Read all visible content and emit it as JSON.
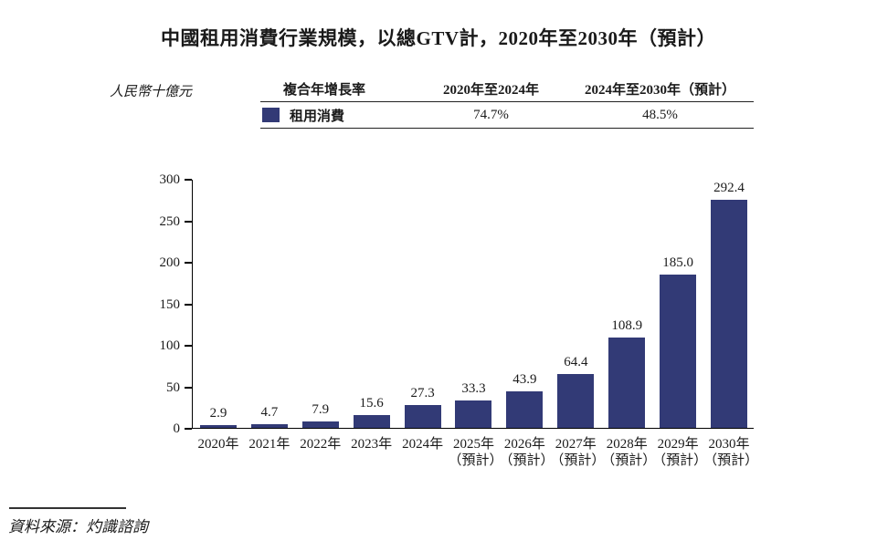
{
  "page": {
    "title": "中國租用消費行業規模，以總GTV計，2020年至2030年（預計）"
  },
  "cagr_table": {
    "headers": [
      "複合年增長率",
      "2020年至2024年",
      "2024年至2030年（預計）"
    ],
    "row": {
      "swatch_color": "#323A76",
      "label": "租用消費",
      "values": [
        "74.7%",
        "48.5%"
      ]
    }
  },
  "chart_data": {
    "type": "bar",
    "title": "中國租用消費行業規模，以總GTV計，2020年至2030年（預計）",
    "unit_label": "人民幣十億元",
    "ylabel": "人民幣十億元",
    "xlabel": "",
    "categories": [
      "2020年",
      "2021年",
      "2022年",
      "2023年",
      "2024年",
      "2025年",
      "2026年",
      "2027年",
      "2028年",
      "2029年",
      "2030年"
    ],
    "category_notes": [
      "",
      "",
      "",
      "",
      "",
      "（預計）",
      "（預計）",
      "（預計）",
      "（預計）",
      "（預計）",
      "（預計）"
    ],
    "values": [
      2.9,
      4.7,
      7.9,
      15.6,
      27.3,
      33.3,
      43.9,
      64.4,
      108.9,
      185.0,
      292.4
    ],
    "value_labels": [
      "2.9",
      "4.7",
      "7.9",
      "15.6",
      "27.3",
      "33.3",
      "43.9",
      "64.4",
      "108.9",
      "185.0",
      "292.4"
    ],
    "series_name": "租用消費",
    "ylim": [
      0,
      300
    ],
    "yticks": [
      0,
      50,
      100,
      150,
      200,
      250,
      300
    ],
    "bar_color": "#323A76",
    "grid": false,
    "legend_position": "top-table",
    "cagr": [
      {
        "period": "2020年至2024年",
        "value": "74.7%"
      },
      {
        "period": "2024年至2030年（預計）",
        "value": "48.5%"
      }
    ]
  },
  "footer": {
    "source": "資料來源：灼識諮詢"
  }
}
